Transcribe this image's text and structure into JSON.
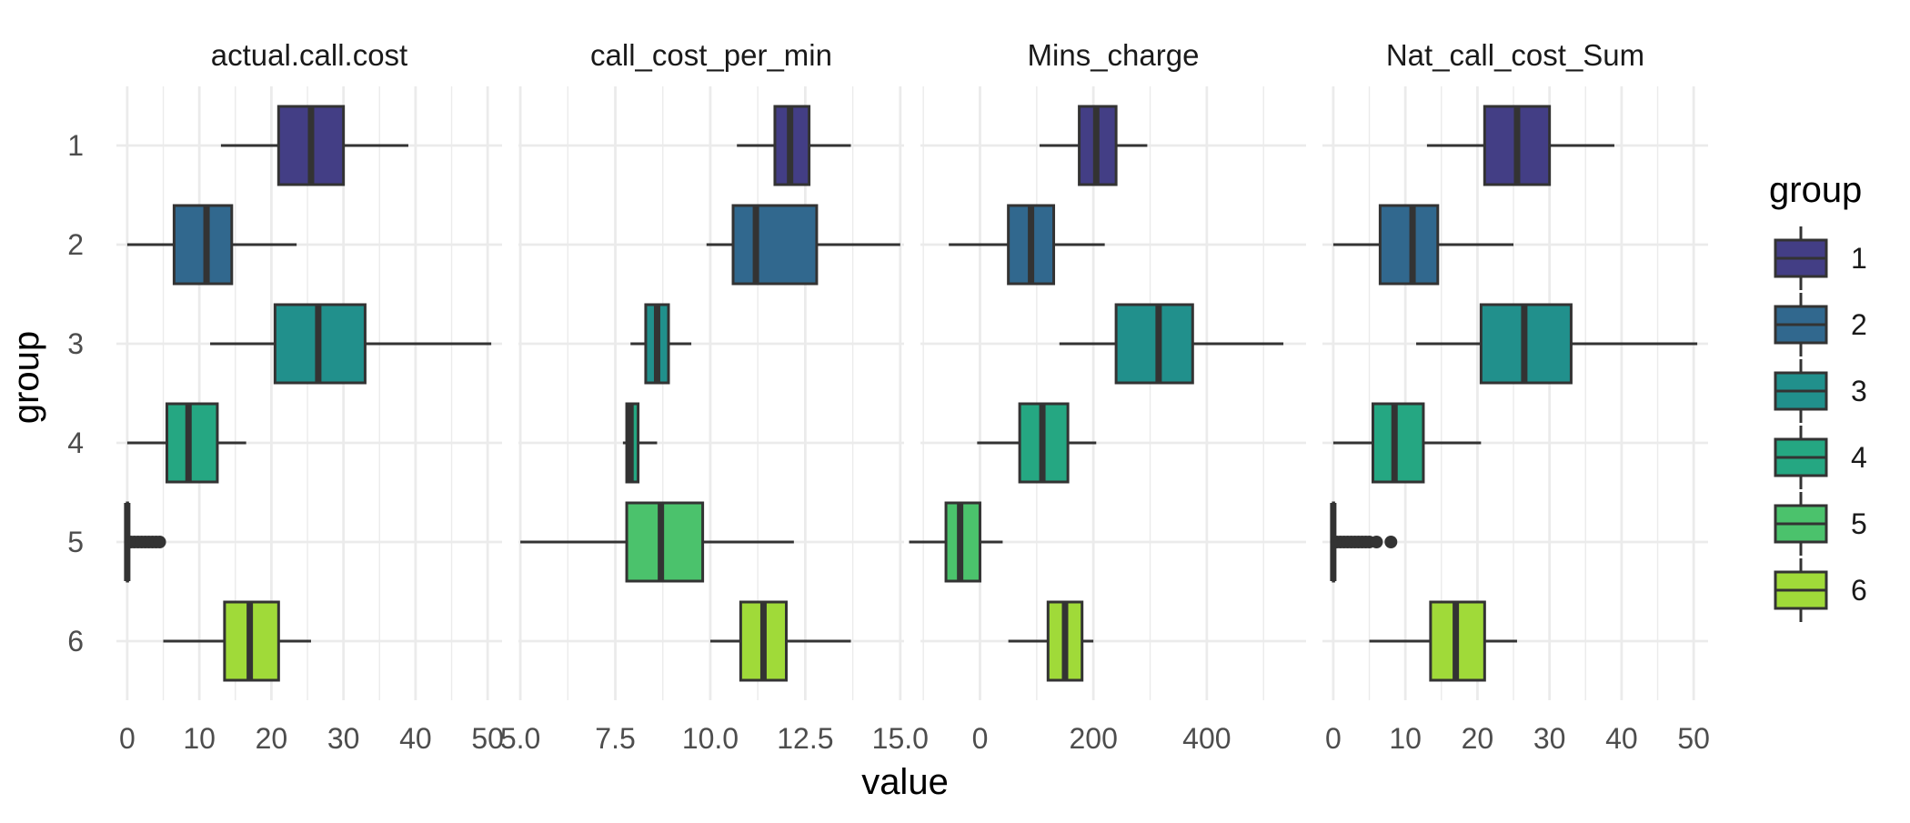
{
  "chart_data": {
    "type": "boxplot",
    "xlabel": "value",
    "ylabel": "group",
    "legend": {
      "title": "group",
      "position": "right",
      "entries": [
        "1",
        "2",
        "3",
        "4",
        "5",
        "6"
      ]
    },
    "groups": [
      "1",
      "2",
      "3",
      "4",
      "5",
      "6"
    ],
    "colors": {
      "1": "#433E85",
      "2": "#31688E",
      "3": "#21908C",
      "4": "#25A782",
      "5": "#4BC26C",
      "6": "#A0DA39"
    },
    "grid": true,
    "facets": [
      {
        "title": "actual.call.cost",
        "xlim": [
          -1.5,
          52
        ],
        "ticks": [
          0,
          10,
          20,
          30,
          40,
          50
        ],
        "tick_labels": [
          "0",
          "10",
          "20",
          "30",
          "40",
          "50"
        ],
        "boxes": [
          {
            "group": "1",
            "min": 13,
            "q1": 21,
            "median": 25.5,
            "q3": 30,
            "max": 39
          },
          {
            "group": "2",
            "min": 0,
            "q1": 6.5,
            "median": 11,
            "q3": 14.5,
            "max": 23.5
          },
          {
            "group": "3",
            "min": 11.5,
            "q1": 20.5,
            "median": 26.5,
            "q3": 33,
            "max": 50.5
          },
          {
            "group": "4",
            "min": 0,
            "q1": 5.5,
            "median": 8.5,
            "q3": 12.5,
            "max": 16.5
          },
          {
            "group": "5",
            "min": 0,
            "q1": 0,
            "median": 0,
            "q3": 0,
            "max": 0,
            "outliers": [
              0.5,
              1.0,
              1.5,
              2.0,
              2.5,
              3.0,
              3.5,
              4.0,
              4.5
            ]
          },
          {
            "group": "6",
            "min": 5,
            "q1": 13.5,
            "median": 17,
            "q3": 21,
            "max": 25.5
          }
        ]
      },
      {
        "title": "call_cost_per_min",
        "xlim": [
          4.95,
          15.1
        ],
        "ticks": [
          5.0,
          7.5,
          10.0,
          12.5,
          15.0
        ],
        "tick_labels": [
          "5.0",
          "7.5",
          "10.0",
          "12.5",
          "15.0"
        ],
        "boxes": [
          {
            "group": "1",
            "min": 10.7,
            "q1": 11.7,
            "median": 12.1,
            "q3": 12.6,
            "max": 13.7
          },
          {
            "group": "2",
            "min": 9.9,
            "q1": 10.6,
            "median": 11.2,
            "q3": 12.8,
            "max": 15.0
          },
          {
            "group": "3",
            "min": 7.9,
            "q1": 8.3,
            "median": 8.6,
            "q3": 8.9,
            "max": 9.5
          },
          {
            "group": "4",
            "min": 7.7,
            "q1": 7.8,
            "median": 7.9,
            "q3": 8.1,
            "max": 8.6
          },
          {
            "group": "5",
            "min": 5.0,
            "q1": 7.8,
            "median": 8.7,
            "q3": 9.8,
            "max": 12.2
          },
          {
            "group": "6",
            "min": 10.0,
            "q1": 10.8,
            "median": 11.4,
            "q3": 12.0,
            "max": 13.7
          }
        ]
      },
      {
        "title": "Mins_charge",
        "xlim": [
          -105,
          575
        ],
        "ticks": [
          0,
          200,
          400
        ],
        "tick_labels": [
          "0",
          "200",
          "400"
        ],
        "boxes": [
          {
            "group": "1",
            "min": 105,
            "q1": 175,
            "median": 205,
            "q3": 240,
            "max": 295
          },
          {
            "group": "2",
            "min": -55,
            "q1": 50,
            "median": 90,
            "q3": 130,
            "max": 220
          },
          {
            "group": "3",
            "min": 140,
            "q1": 240,
            "median": 315,
            "q3": 375,
            "max": 535
          },
          {
            "group": "4",
            "min": -5,
            "q1": 70,
            "median": 110,
            "q3": 155,
            "max": 205
          },
          {
            "group": "5",
            "min": -125,
            "q1": -60,
            "median": -35,
            "q3": 0,
            "max": 40
          },
          {
            "group": "6",
            "min": 50,
            "q1": 120,
            "median": 150,
            "q3": 180,
            "max": 200
          }
        ]
      },
      {
        "title": "Nat_call_cost_Sum",
        "xlim": [
          -1.5,
          52
        ],
        "ticks": [
          0,
          10,
          20,
          30,
          40,
          50
        ],
        "tick_labels": [
          "0",
          "10",
          "20",
          "30",
          "40",
          "50"
        ],
        "boxes": [
          {
            "group": "1",
            "min": 13,
            "q1": 21,
            "median": 25.5,
            "q3": 30,
            "max": 39
          },
          {
            "group": "2",
            "min": 0,
            "q1": 6.5,
            "median": 11,
            "q3": 14.5,
            "max": 25
          },
          {
            "group": "3",
            "min": 11.5,
            "q1": 20.5,
            "median": 26.5,
            "q3": 33,
            "max": 50.5
          },
          {
            "group": "4",
            "min": 0,
            "q1": 5.5,
            "median": 8.5,
            "q3": 12.5,
            "max": 20.5
          },
          {
            "group": "5",
            "min": 0,
            "q1": 0,
            "median": 0,
            "q3": 0,
            "max": 0,
            "outliers": [
              0.5,
              1.0,
              1.5,
              2.0,
              2.5,
              3.0,
              3.5,
              4.0,
              4.5,
              5.0,
              6.0,
              8.0
            ]
          },
          {
            "group": "6",
            "min": 5,
            "q1": 13.5,
            "median": 17,
            "q3": 21,
            "max": 25.5
          }
        ]
      }
    ]
  }
}
